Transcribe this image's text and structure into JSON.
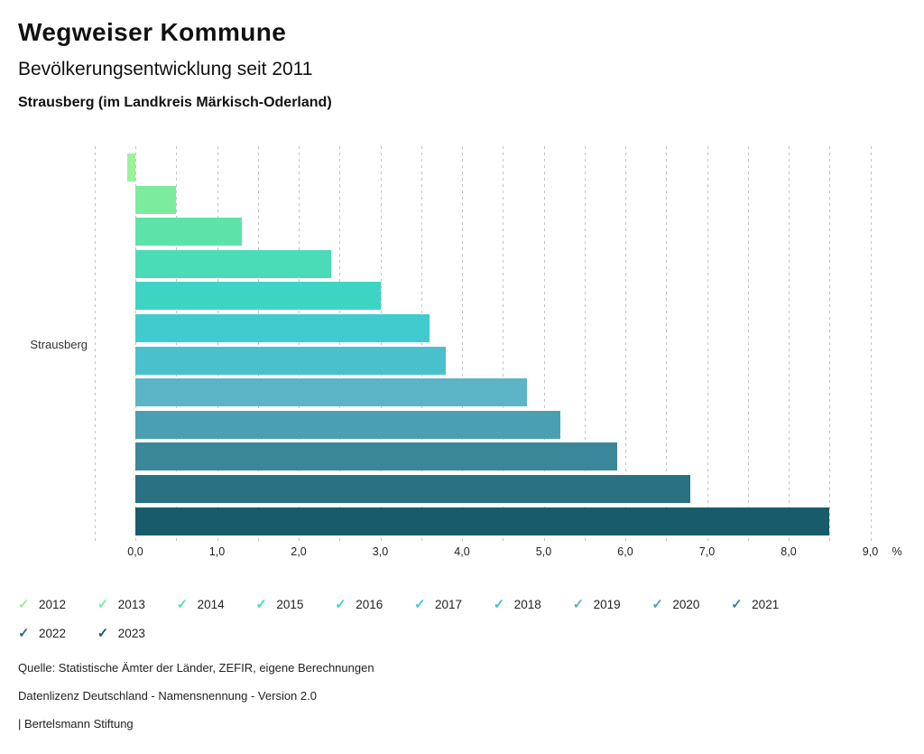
{
  "header": {
    "title": "Wegweiser Kommune",
    "subtitle": "Bevölkerungsentwicklung seit 2011",
    "region": "Strausberg (im Landkreis Märkisch-Oderland)"
  },
  "chart_data": {
    "type": "bar",
    "orientation": "horizontal",
    "title": "Bevölkerungsentwicklung seit 2011",
    "category_label": "Strausberg",
    "unit": "%",
    "xlim": [
      -0.5,
      9.5
    ],
    "gridline_step": 0.5,
    "grid": true,
    "legend_position": "bottom",
    "x_ticks": [
      0,
      1,
      2,
      3,
      4,
      5,
      6,
      7,
      8,
      9
    ],
    "x_tick_labels": [
      "0,0",
      "1,0",
      "2,0",
      "3,0",
      "4,0",
      "5,0",
      "6,0",
      "7,0",
      "8,0",
      "9,0"
    ],
    "series": [
      {
        "name": "2012",
        "value": -0.1,
        "color": "#9BF29B"
      },
      {
        "name": "2013",
        "value": 0.5,
        "color": "#7CEB9D"
      },
      {
        "name": "2014",
        "value": 1.3,
        "color": "#5DE3AA"
      },
      {
        "name": "2015",
        "value": 2.4,
        "color": "#49DCB6"
      },
      {
        "name": "2016",
        "value": 3.0,
        "color": "#3ED4C4"
      },
      {
        "name": "2017",
        "value": 3.6,
        "color": "#41CBCE"
      },
      {
        "name": "2018",
        "value": 3.8,
        "color": "#4BC0CD"
      },
      {
        "name": "2019",
        "value": 4.8,
        "color": "#5CB5C6"
      },
      {
        "name": "2020",
        "value": 5.2,
        "color": "#4AA0B2"
      },
      {
        "name": "2021",
        "value": 5.9,
        "color": "#3A8799"
      },
      {
        "name": "2022",
        "value": 6.8,
        "color": "#297183"
      },
      {
        "name": "2023",
        "value": 8.5,
        "color": "#185C6B"
      }
    ],
    "legend_icon": "check-icon",
    "gridline_color": "#c3c3c3"
  },
  "footer": {
    "source": "Quelle: Statistische Ämter der Länder, ZEFIR, eigene Berechnungen",
    "license": "Datenlizenz Deutschland - Namensnennung - Version 2.0",
    "attribution": "| Bertelsmann Stiftung"
  }
}
